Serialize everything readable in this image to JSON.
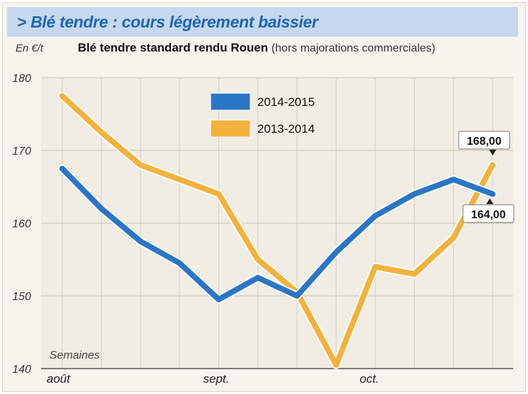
{
  "header": {
    "title": "> Blé tendre : cours légèrement baissier",
    "unit": "En €/t",
    "subtitle_bold": "Blé tendre standard rendu Rouen",
    "subtitle_note": "(hors majorations commerciales)"
  },
  "colors": {
    "banner_bg": "#c6d7ee",
    "title": "#1b66b1",
    "series_2014_2015": "#2a76c6",
    "series_2013_2014": "#f2b23c"
  },
  "chart_data": {
    "type": "line",
    "xlabel": "Semaines",
    "ylabel": "En €/t",
    "ylim": [
      140,
      180
    ],
    "yticks": [
      140,
      150,
      160,
      170,
      180
    ],
    "x_tick_labels": [
      {
        "label": "août",
        "index": 0
      },
      {
        "label": "sept.",
        "index": 4
      },
      {
        "label": "oct.",
        "index": 8
      }
    ],
    "x_count": 12,
    "grid": true,
    "legend_position": "top-center",
    "series": [
      {
        "name": "2014-2015",
        "color": "#2a76c6",
        "values": [
          167.5,
          162,
          157.5,
          154.5,
          149.5,
          152.5,
          150,
          156,
          161,
          164,
          166,
          164
        ],
        "end_label": "164,00"
      },
      {
        "name": "2013-2014",
        "color": "#f2b23c",
        "values": [
          177.5,
          172.5,
          168,
          166,
          164,
          155,
          150.5,
          140.5,
          154,
          153,
          158,
          168
        ],
        "end_label": "168,00"
      }
    ]
  }
}
